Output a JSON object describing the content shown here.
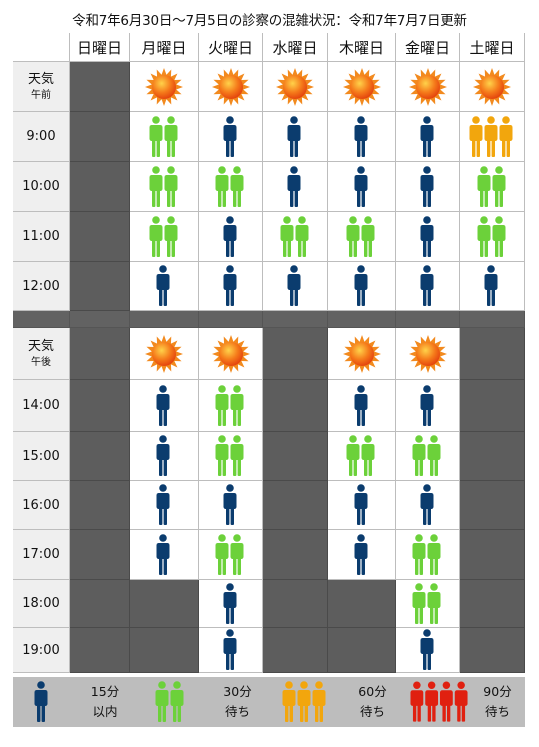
{
  "title": "令和7年6月30日〜7月5日の診察の混雑状況：令和7年7月7日更新",
  "days": [
    "日曜日",
    "月曜日",
    "火曜日",
    "水曜日",
    "木曜日",
    "金曜日",
    "土曜日"
  ],
  "weather_am": {
    "line1": "天気",
    "line2": "午前",
    "values": [
      "closed",
      "sunny",
      "sunny",
      "sunny",
      "sunny",
      "sunny",
      "sunny"
    ]
  },
  "weather_pm": {
    "line1": "天気",
    "line2": "午後",
    "values": [
      "closed",
      "sunny",
      "sunny",
      "closed",
      "sunny",
      "sunny",
      "closed"
    ]
  },
  "colors": {
    "level1": "#0b3c6e",
    "level2": "#6cd13a",
    "level3": "#f2a60d",
    "level4": "#e02010",
    "closed": "#5d5d5d",
    "sun": "#f2560f"
  },
  "morning": [
    {
      "time": "9:00",
      "levels": [
        "closed",
        "2",
        "1",
        "1",
        "1",
        "1",
        "3"
      ]
    },
    {
      "time": "10:00",
      "levels": [
        "closed",
        "2",
        "2",
        "1",
        "1",
        "1",
        "2"
      ]
    },
    {
      "time": "11:00",
      "levels": [
        "closed",
        "2",
        "1",
        "2",
        "2",
        "1",
        "2"
      ]
    },
    {
      "time": "12:00",
      "levels": [
        "closed",
        "1",
        "1",
        "1",
        "1",
        "1",
        "1"
      ]
    }
  ],
  "afternoon": [
    {
      "time": "14:00",
      "levels": [
        "closed",
        "1",
        "2",
        "closed",
        "1",
        "1",
        "closed"
      ]
    },
    {
      "time": "15:00",
      "levels": [
        "closed",
        "1",
        "2",
        "closed",
        "2",
        "2",
        "closed"
      ]
    },
    {
      "time": "16:00",
      "levels": [
        "closed",
        "1",
        "1",
        "closed",
        "1",
        "1",
        "closed"
      ]
    },
    {
      "time": "17:00",
      "levels": [
        "closed",
        "1",
        "2",
        "closed",
        "1",
        "2",
        "closed"
      ]
    },
    {
      "time": "18:00",
      "levels": [
        "closed",
        "closed",
        "1",
        "closed",
        "closed",
        "2",
        "closed"
      ]
    },
    {
      "time": "19:00",
      "levels": [
        "closed",
        "closed",
        "1",
        "closed",
        "closed",
        "1",
        "closed"
      ]
    }
  ],
  "legend": [
    {
      "level": "1",
      "line1": "15分",
      "line2": "以内"
    },
    {
      "level": "2",
      "line1": "30分",
      "line2": "待ち"
    },
    {
      "level": "3",
      "line1": "60分",
      "line2": "待ち"
    },
    {
      "level": "4",
      "line1": "90分",
      "line2": "待ち"
    }
  ]
}
